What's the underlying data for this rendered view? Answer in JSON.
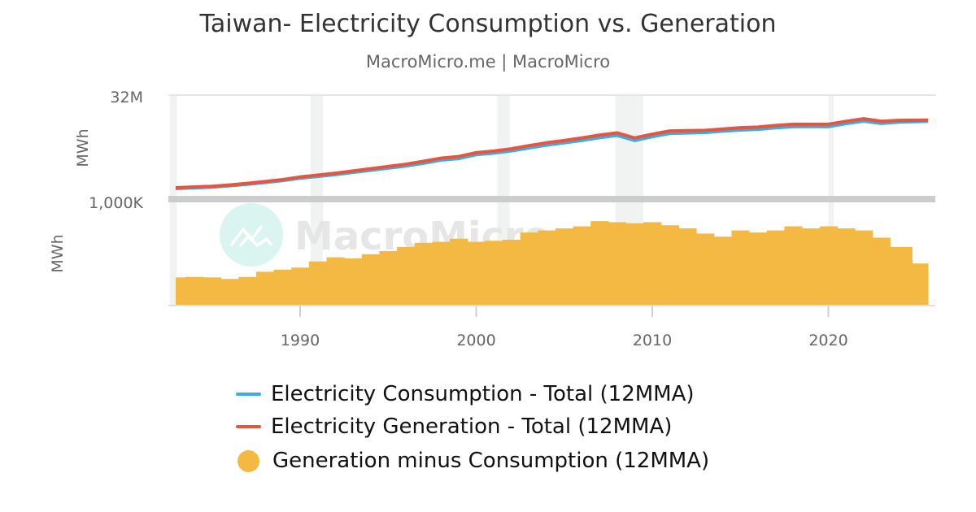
{
  "chart_data": {
    "type": "line+bar",
    "title": "Taiwan- Electricity Consumption vs. Generation",
    "subtitle": "MacroMicro.me | MacroMicro",
    "watermark": "MacroMicro",
    "x_ticks": [
      "1990",
      "2000",
      "2010",
      "2020"
    ],
    "xlim": [
      1982.5,
      2026
    ],
    "shaded_periods": [
      [
        1982.6,
        1983.0
      ],
      [
        1990.6,
        1991.3
      ],
      [
        2001.2,
        2001.9
      ],
      [
        2007.9,
        2009.5
      ],
      [
        2020.0,
        2020.3
      ]
    ],
    "panels": [
      {
        "ylabel": "MWh",
        "top_tick": "32M",
        "ylim": [
          0,
          32000000
        ]
      },
      {
        "ylabel": "MWh",
        "top_tick": "1,000K",
        "ylim": [
          0,
          1000000
        ]
      }
    ],
    "x": [
      1983,
      1984,
      1985,
      1986,
      1987,
      1988,
      1989,
      1990,
      1991,
      1992,
      1993,
      1994,
      1995,
      1996,
      1997,
      1998,
      1999,
      2000,
      2001,
      2002,
      2003,
      2004,
      2005,
      2006,
      2007,
      2008,
      2009,
      2010,
      2011,
      2012,
      2013,
      2014,
      2015,
      2016,
      2017,
      2018,
      2019,
      2020,
      2021,
      2022,
      2023,
      2024,
      2025.5
    ],
    "series": [
      {
        "name": "Electricity Consumption - Total (12MMA)",
        "color": "#3bade0",
        "panel": 0,
        "type": "line",
        "values": [
          2785000,
          3030000,
          3235000,
          3650000,
          4130000,
          4680000,
          5260000,
          6040000,
          6580000,
          7140000,
          7850000,
          8510000,
          9180000,
          9840000,
          10700000,
          11690000,
          12160000,
          13390000,
          13880000,
          14570000,
          15500000,
          16380000,
          17060000,
          17840000,
          18690000,
          19400000,
          17810000,
          19000000,
          20030000,
          20160000,
          20310000,
          20740000,
          21080000,
          21300000,
          21780000,
          22140000,
          22160000,
          22140000,
          23060000,
          23880000,
          23150000,
          23540000,
          23800000
        ]
      },
      {
        "name": "Electricity Generation - Total (12MMA)",
        "color": "#e8553e",
        "panel": 0,
        "type": "line",
        "values": [
          3050000,
          3300000,
          3500000,
          3900000,
          4400000,
          5000000,
          5600000,
          6400000,
          7000000,
          7600000,
          8300000,
          9000000,
          9700000,
          10400000,
          11300000,
          12300000,
          12800000,
          14000000,
          14500000,
          15200000,
          16200000,
          17100000,
          17800000,
          18600000,
          19500000,
          20200000,
          18600000,
          19800000,
          20800000,
          20900000,
          21000000,
          21400000,
          21800000,
          22000000,
          22500000,
          22900000,
          22900000,
          22900000,
          23800000,
          24600000,
          23800000,
          24100000,
          24200000
        ]
      },
      {
        "name": "Generation minus Consumption (12MMA)",
        "color": "#f4b942",
        "panel": 1,
        "type": "bar",
        "values": [
          265000,
          270000,
          265000,
          250000,
          270000,
          320000,
          340000,
          360000,
          420000,
          460000,
          450000,
          490000,
          520000,
          560000,
          600000,
          610000,
          640000,
          610000,
          620000,
          630000,
          700000,
          720000,
          740000,
          760000,
          810000,
          800000,
          790000,
          800000,
          770000,
          740000,
          690000,
          660000,
          720000,
          700000,
          720000,
          760000,
          740000,
          760000,
          740000,
          720000,
          650000,
          560000,
          400000
        ]
      }
    ]
  }
}
